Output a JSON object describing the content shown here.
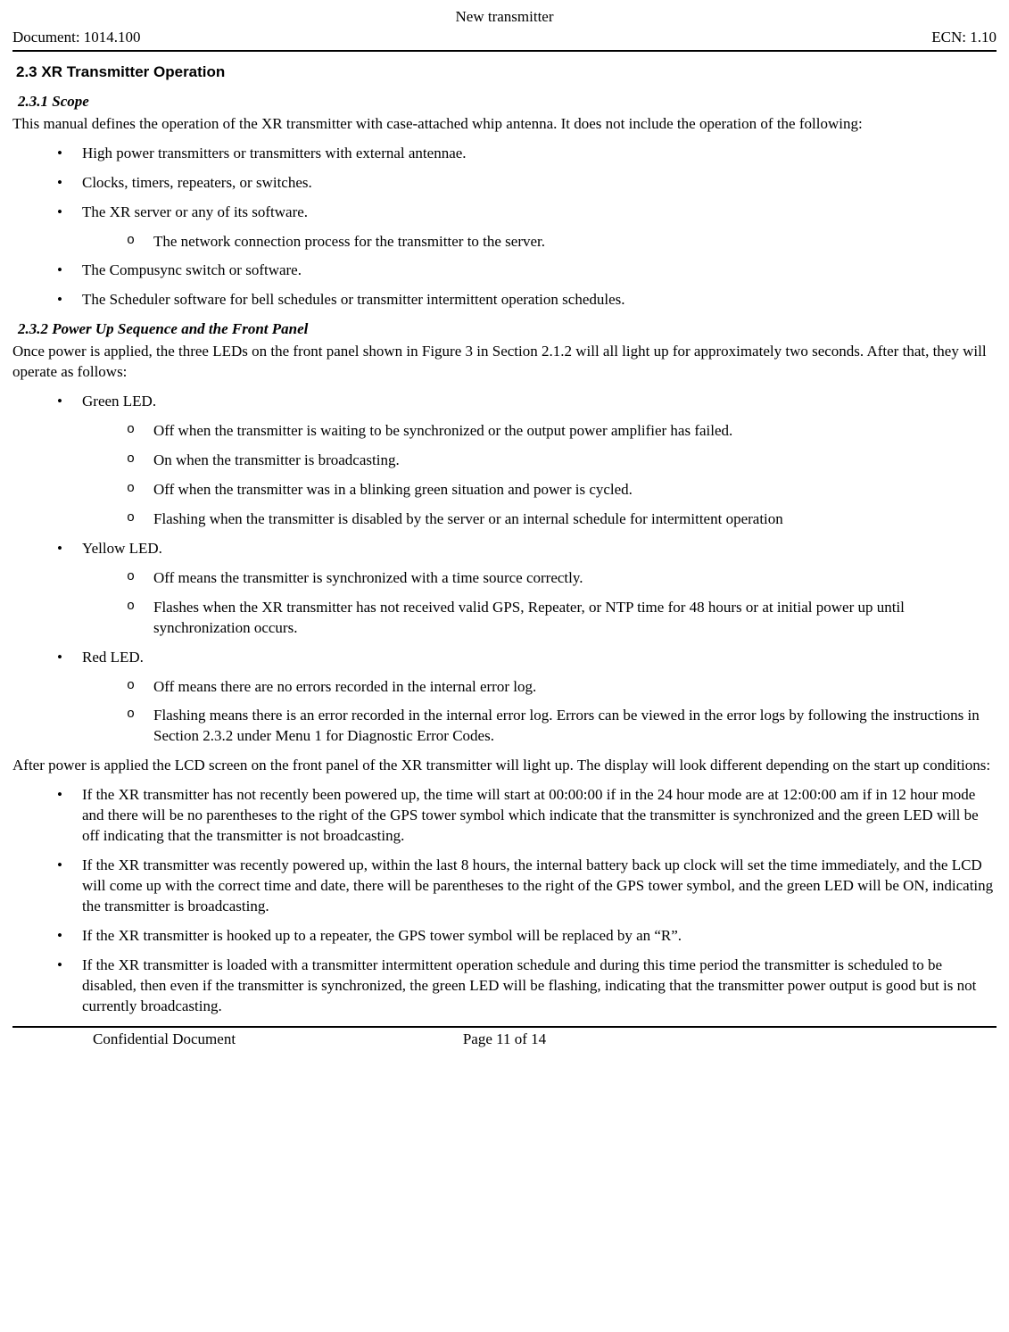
{
  "header": {
    "top_title": "New transmitter",
    "doc_label": "Document: 1014.100",
    "ecn_label": "ECN: 1.10"
  },
  "section_heading": "2.3 XR Transmitter Operation",
  "scope": {
    "heading": "2.3.1 Scope",
    "intro": "This manual defines the operation of the XR transmitter with case-attached whip antenna.  It does not include the operation of the following:",
    "items": [
      "High power transmitters or transmitters with external antennae.",
      "Clocks, timers, repeaters, or switches.",
      "The XR server or any of its software.",
      "The Compusync switch or software.",
      "The Scheduler software for bell schedules or transmitter intermittent operation schedules."
    ],
    "item3_sub": [
      "The network connection process for the transmitter to the server."
    ]
  },
  "powerup": {
    "heading": "2.3.2 Power Up Sequence and the Front Panel",
    "intro": "Once power is applied, the three LEDs on the front panel shown in Figure 3 in Section 2.1.2 will all light up for approximately two seconds.  After that, they will operate as follows:",
    "leds": {
      "green": {
        "label": "Green LED.",
        "subs": [
          "Off when the transmitter is waiting to be synchronized or the output power amplifier has failed.",
          "On when the transmitter is broadcasting.",
          "Off when the transmitter was in a blinking green situation and power is cycled.",
          "Flashing when the transmitter is disabled by the server or an internal schedule for intermittent operation"
        ]
      },
      "yellow": {
        "label": "Yellow LED.",
        "subs": [
          "Off means the transmitter is synchronized with a time source correctly.",
          "Flashes when the XR transmitter has not received valid GPS, Repeater, or NTP time for 48 hours or at initial power up until synchronization occurs."
        ]
      },
      "red": {
        "label": "Red LED.",
        "subs": [
          "Off means there are no errors recorded in the internal error log.",
          "Flashing means there is an error recorded in the internal error log.  Errors can be viewed in the error logs by following the instructions in Section 2.3.2 under Menu 1 for Diagnostic Error Codes."
        ]
      }
    },
    "afterpara": "After power is applied the LCD screen on the front panel of the XR transmitter will light up.  The display will look different depending on the start up conditions:",
    "conditions": [
      "If the XR transmitter has not recently been powered up, the time will start at 00:00:00 if in the 24 hour mode are at 12:00:00 am if in 12 hour mode and there will be no parentheses to the right of the GPS tower symbol which indicate that the transmitter is synchronized and the green LED will be off indicating that the transmitter is not broadcasting.",
      "If the XR transmitter was recently powered up, within the last 8 hours, the internal battery back up clock will set the time immediately, and the LCD will come up with the correct time and date, there will be parentheses to the right of the GPS tower symbol, and the green LED will be ON, indicating the transmitter is broadcasting.",
      "If the XR transmitter is hooked up to a repeater, the GPS tower symbol will be replaced by an “R”.",
      "If the XR transmitter is loaded with a transmitter intermittent operation schedule and during this time period the transmitter is scheduled to be disabled, then even if the transmitter is synchronized, the green LED will be flashing, indicating that the transmitter power output is good but is not currently broadcasting."
    ]
  },
  "footer": {
    "confidential": "Confidential Document",
    "page": "Page 11 of 14"
  }
}
